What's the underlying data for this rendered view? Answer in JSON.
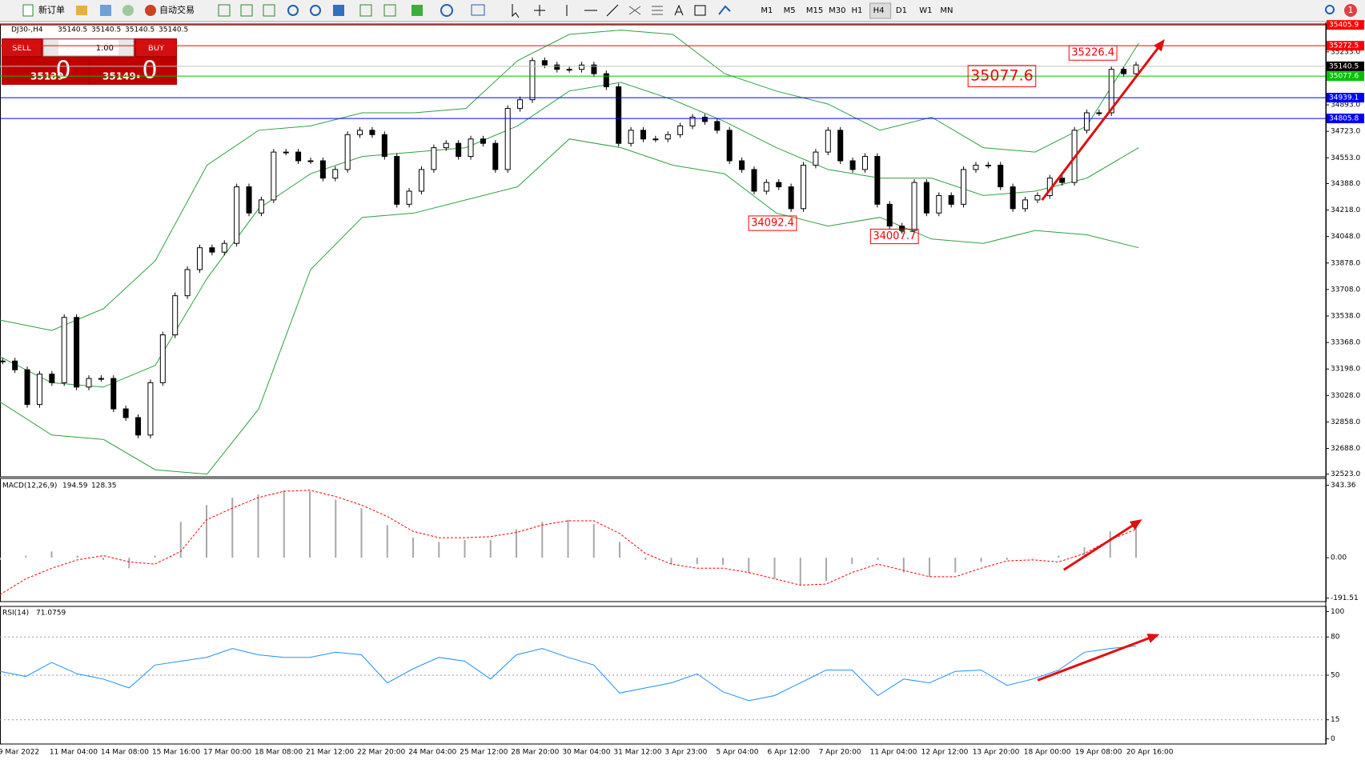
{
  "toolbar": {
    "new_order": "新订单",
    "auto_trading": "自动交易",
    "timeframes": [
      "M1",
      "M5",
      "M15",
      "M30",
      "H1",
      "H4",
      "D1",
      "W1",
      "MN"
    ],
    "active_timeframe": 5,
    "notifications": 1
  },
  "order_panel": {
    "sell": "SELL",
    "buy": "BUY",
    "lots": "1.00",
    "sell_price": "35139",
    "sell_price_big": ".0",
    "buy_price": "35149",
    "buy_price_big": ".0"
  },
  "chart_data": [
    {
      "type": "candlestick",
      "title": "DJ30-,H4",
      "ohlc": [
        35140.5,
        35140.5,
        35140.5,
        35140.5
      ],
      "up_color": "#ffffff",
      "down_color": "#000000",
      "values": [
        33249,
        33193,
        32970,
        33165,
        33110,
        33529,
        33082,
        33137,
        33137,
        32942,
        32886,
        32774,
        33110,
        33417,
        33668,
        33836,
        33976,
        33948,
        34004,
        34367,
        34199,
        34283,
        34590,
        34590,
        34534,
        34534,
        34423,
        34478,
        34702,
        34730,
        34702,
        34562,
        34255,
        34339,
        34478,
        34618,
        34646,
        34562,
        34674,
        34646,
        34478,
        34870,
        34926,
        35177,
        35149,
        35121,
        35121,
        35149,
        35093,
        35009,
        34646,
        34730,
        34674,
        34674,
        34702,
        34758,
        34814,
        34786,
        34730,
        34534,
        34478,
        34339,
        34395,
        34367,
        34227,
        34506,
        34590,
        34730,
        34534,
        34478,
        34562,
        34255,
        34115,
        34087,
        34395,
        34199,
        34311,
        34255,
        34478,
        34506,
        34506,
        34367,
        34227,
        34283,
        34311,
        34423,
        34395,
        34730,
        34842,
        34842,
        35121,
        35093,
        35149
      ],
      "bollinger": {
        "color": "#2ea043",
        "upper": [
          33512,
          33445,
          33585,
          33892,
          34506,
          34730,
          34758,
          34842,
          34842,
          34870,
          35177,
          35345,
          35373,
          35345,
          35093,
          34982,
          34898,
          34730,
          34814,
          34618,
          34590,
          34758,
          35289
        ],
        "middle": [
          33277,
          33110,
          33082,
          33221,
          33780,
          34227,
          34451,
          34562,
          34590,
          34618,
          34758,
          34982,
          35037,
          34926,
          34786,
          34618,
          34478,
          34423,
          34423,
          34311,
          34339,
          34423,
          34618
        ],
        "lower": [
          32987,
          32774,
          32746,
          32551,
          32523,
          32942,
          33836,
          34171,
          34199,
          34283,
          34367,
          34674,
          34618,
          34506,
          34451,
          34199,
          34115,
          34171,
          34032,
          34004,
          34087,
          34059,
          33976
        ]
      },
      "ylim": [
        32506,
        35412
      ],
      "yticks": [
        {
          "value": 35233,
          "label": "35233.0"
        },
        {
          "value": 34893,
          "label": "34893.0"
        },
        {
          "value": 34723,
          "label": "34723.0"
        },
        {
          "value": 34553,
          "label": "34553.0"
        },
        {
          "value": 34388,
          "label": "34388.0"
        },
        {
          "value": 34218,
          "label": "34218.0"
        },
        {
          "value": 34048,
          "label": "34048.0"
        },
        {
          "value": 33878,
          "label": "33878.0"
        },
        {
          "value": 33708,
          "label": "33708.0"
        },
        {
          "value": 33538,
          "label": "33538.0"
        },
        {
          "value": 33368,
          "label": "33368.0"
        },
        {
          "value": 33198,
          "label": "33198.0"
        },
        {
          "value": 33028,
          "label": "33028.0"
        },
        {
          "value": 32858,
          "label": "32858.0"
        },
        {
          "value": 32688,
          "label": "32688.0"
        },
        {
          "value": 32523,
          "label": "32523.0"
        }
      ],
      "price_lines": [
        {
          "value": 35405.9,
          "color": "#ff0000",
          "label_color": "#ff0000"
        },
        {
          "value": 35272.5,
          "color": "#ff0000",
          "label_color": "#ff0000"
        },
        {
          "value": 35140.5,
          "color": "#c0c0c0",
          "label_color": "#000000"
        },
        {
          "value": 35077.6,
          "color": "#00c000",
          "label_color": "#00c000"
        },
        {
          "value": 34939.1,
          "color": "#0000ff",
          "label_color": "#0000ff"
        },
        {
          "value": 34805.8,
          "color": "#0000ff",
          "label_color": "#0000ff"
        }
      ],
      "annotations": [
        35226.4,
        35077.6,
        34092.4,
        34007.7
      ],
      "time_labels": [
        "9 Mar 2022",
        "11 Mar 04:00",
        "14 Mar 08:00",
        "15 Mar 16:00",
        "17 Mar 00:00",
        "18 Mar 08:00",
        "21 Mar 12:00",
        "22 Mar 20:00",
        "24 Mar 04:00",
        "25 Mar 12:00",
        "28 Mar 20:00",
        "30 Mar 04:00",
        "31 Mar 12:00",
        "3 Apr 23:00",
        "5 Apr 04:00",
        "6 Apr 12:00",
        "7 Apr 20:00",
        "11 Apr 04:00",
        "12 Apr 12:00",
        "13 Apr 20:00",
        "18 Apr 00:00",
        "19 Apr 08:00",
        "20 Apr 16:00"
      ]
    },
    {
      "type": "macd",
      "title": "MACD(12,26,9)",
      "current": [
        194.59,
        128.35
      ],
      "bar_color": "#a8a8a8",
      "signal_color": "#ff0000",
      "values": [
        -10,
        10,
        30,
        10,
        -10,
        -50,
        10,
        170,
        250,
        285,
        300,
        320,
        315,
        275,
        235,
        155,
        95,
        75,
        85,
        85,
        135,
        170,
        180,
        160,
        75,
        -10,
        -30,
        -30,
        -35,
        -70,
        -100,
        -130,
        -110,
        -30,
        -10,
        -70,
        -90,
        -70,
        -20,
        -10,
        0,
        10,
        50,
        125,
        175
      ],
      "signal": [
        -175,
        -100,
        -50,
        -10,
        10,
        -20,
        -30,
        30,
        180,
        235,
        285,
        315,
        320,
        290,
        250,
        195,
        125,
        95,
        95,
        100,
        120,
        155,
        175,
        175,
        115,
        20,
        -30,
        -50,
        -50,
        -70,
        -100,
        -130,
        -125,
        -70,
        -30,
        -60,
        -90,
        -90,
        -50,
        -15,
        -10,
        -20,
        20,
        85,
        135
      ],
      "ylim": [
        -208,
        376
      ],
      "yticks": [
        {
          "value": 343.36,
          "label": "343.36"
        },
        {
          "value": 0,
          "label": "0.00"
        },
        {
          "value": -191.51,
          "label": "-191.51"
        }
      ]
    },
    {
      "type": "line",
      "title": "RSI(14)",
      "current": 71.0759,
      "color": "#1e90ff",
      "values": [
        53,
        49,
        60,
        51,
        47,
        40,
        58,
        61,
        64,
        71,
        66,
        64,
        64,
        68,
        66,
        44,
        55,
        64,
        61,
        47,
        66,
        71,
        64,
        58,
        36,
        40,
        44,
        51,
        37,
        30,
        34,
        44,
        54,
        54,
        34,
        47,
        44,
        53,
        54,
        42,
        47,
        54,
        68,
        71,
        73
      ],
      "ylim": [
        -4,
        104
      ],
      "yticks": [
        100,
        80,
        50,
        15,
        0
      ],
      "levels": [
        80,
        50,
        15
      ]
    }
  ]
}
